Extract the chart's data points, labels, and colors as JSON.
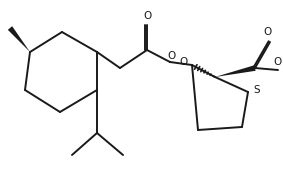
{
  "bg_color": "#ffffff",
  "line_color": "#1a1a1a",
  "line_width": 1.4,
  "fig_width": 2.83,
  "fig_height": 1.84,
  "dpi": 100,
  "xlim": [
    0,
    10
  ],
  "ylim": [
    0,
    6.5
  ]
}
